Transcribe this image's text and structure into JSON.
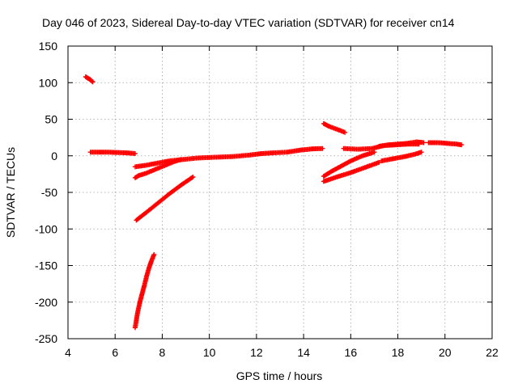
{
  "chart_data": {
    "type": "scatter",
    "title": "Day 046 of 2023, Sidereal Day-to-day VTEC variation (SDTVAR) for receiver cn14",
    "xlabel": "GPS time / hours",
    "ylabel": "SDTVAR / TECUs",
    "xlim": [
      4,
      22
    ],
    "ylim": [
      -250,
      150
    ],
    "xticks": [
      4,
      6,
      8,
      10,
      12,
      14,
      16,
      18,
      20,
      22
    ],
    "yticks": [
      -250,
      -200,
      -150,
      -100,
      -50,
      0,
      50,
      100,
      150
    ],
    "grid": true,
    "marker": "plus",
    "color": "#ff0000",
    "segments": [
      {
        "x": [
          4.75,
          4.85,
          4.95,
          5.05
        ],
        "y": [
          108,
          106,
          104,
          101
        ]
      },
      {
        "x": [
          4.95,
          5.3,
          5.7,
          6.1,
          6.5,
          6.85
        ],
        "y": [
          5,
          5,
          5,
          4.5,
          4,
          3
        ]
      },
      {
        "x": [
          6.85,
          7.0,
          7.3,
          7.6,
          7.9,
          8.2,
          8.5,
          8.8
        ],
        "y": [
          -30,
          -27,
          -24,
          -20,
          -16,
          -12,
          -8,
          -5
        ]
      },
      {
        "x": [
          6.85,
          7.3,
          7.8,
          8.3,
          8.9,
          9.5,
          10.2,
          11.0,
          11.7,
          12.2,
          12.7,
          13.3,
          13.9,
          14.4,
          14.8
        ],
        "y": [
          -15,
          -13,
          -10,
          -7,
          -5,
          -3,
          -2,
          -1,
          1,
          3,
          4,
          5,
          8,
          9.5,
          10
        ]
      },
      {
        "x": [
          6.9,
          7.3,
          7.8,
          8.3,
          8.8,
          9.3
        ],
        "y": [
          -88,
          -78,
          -65,
          -52,
          -40,
          -29
        ]
      },
      {
        "x": [
          6.85,
          6.95,
          7.05,
          7.15,
          7.25,
          7.35,
          7.45,
          7.55,
          7.65
        ],
        "y": [
          -235,
          -215,
          -200,
          -188,
          -176,
          -163,
          -152,
          -143,
          -135
        ]
      },
      {
        "x": [
          14.85,
          15.1,
          15.35,
          15.6,
          15.75
        ],
        "y": [
          44,
          40,
          37,
          34,
          32
        ]
      },
      {
        "x": [
          14.85,
          15.4,
          16.0,
          16.6,
          17.2
        ],
        "y": [
          -35,
          -29,
          -23,
          -16,
          -9
        ]
      },
      {
        "x": [
          14.85,
          15.2,
          15.6,
          16.0,
          16.5,
          17.0
        ],
        "y": [
          -28,
          -21,
          -14,
          -7,
          0,
          5
        ]
      },
      {
        "x": [
          15.7,
          16.3,
          16.9,
          17.4,
          17.9,
          18.4,
          18.9
        ],
        "y": [
          10,
          9,
          10,
          14,
          15,
          16,
          16
        ]
      },
      {
        "x": [
          17.2,
          17.6,
          18.0,
          18.4,
          18.8,
          19.1
        ],
        "y": [
          13,
          15,
          16,
          17,
          19,
          18
        ]
      },
      {
        "x": [
          17.3,
          17.8,
          18.3,
          18.7,
          19.0
        ],
        "y": [
          -7,
          -4,
          -1,
          2,
          5
        ]
      },
      {
        "x": [
          19.3,
          19.7,
          20.1,
          20.5,
          20.7
        ],
        "y": [
          18,
          18,
          17,
          16,
          15
        ]
      }
    ]
  }
}
